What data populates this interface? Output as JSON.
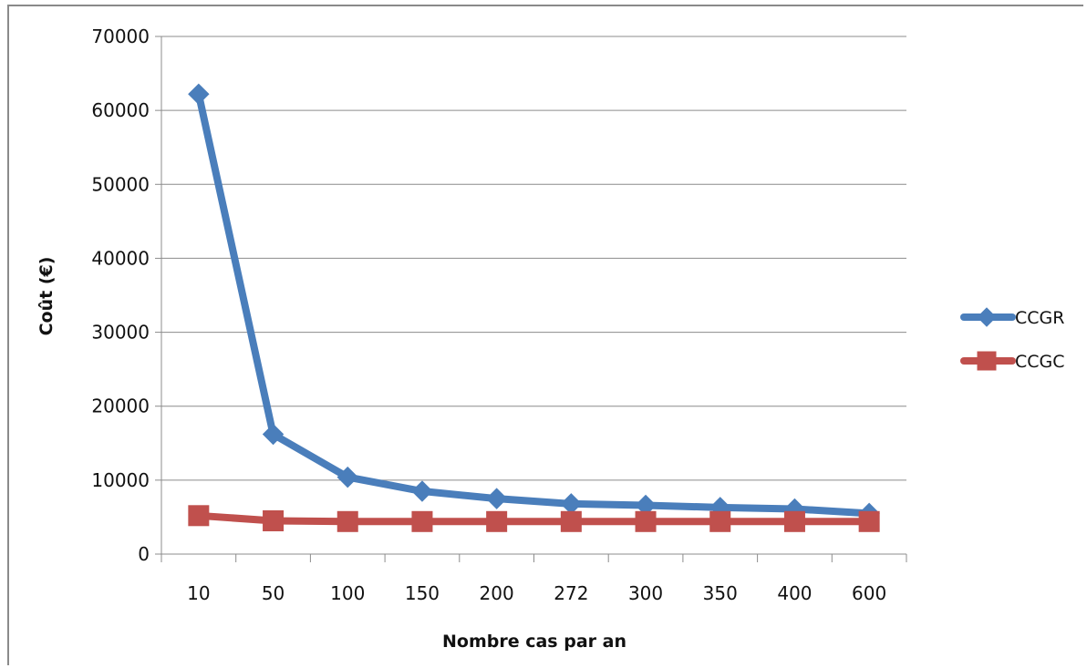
{
  "chart_data": {
    "type": "line",
    "title": "",
    "xlabel": "Nombre cas par an",
    "ylabel": "Coût (€)",
    "categories": [
      "10",
      "50",
      "100",
      "150",
      "200",
      "272",
      "300",
      "350",
      "400",
      "600"
    ],
    "ylim": [
      0,
      70000
    ],
    "yticks": [
      0,
      10000,
      20000,
      30000,
      40000,
      50000,
      60000,
      70000
    ],
    "grid": true,
    "legend_position": "right",
    "series": [
      {
        "name": "CCGR",
        "color": "#4a7ebb",
        "marker": "diamond",
        "values": [
          62200,
          16200,
          10400,
          8500,
          7500,
          6800,
          6600,
          6300,
          6100,
          5500
        ]
      },
      {
        "name": "CCGC",
        "color": "#c0504d",
        "marker": "square",
        "values": [
          5200,
          4500,
          4400,
          4400,
          4400,
          4400,
          4400,
          4400,
          4400,
          4400
        ]
      }
    ]
  }
}
